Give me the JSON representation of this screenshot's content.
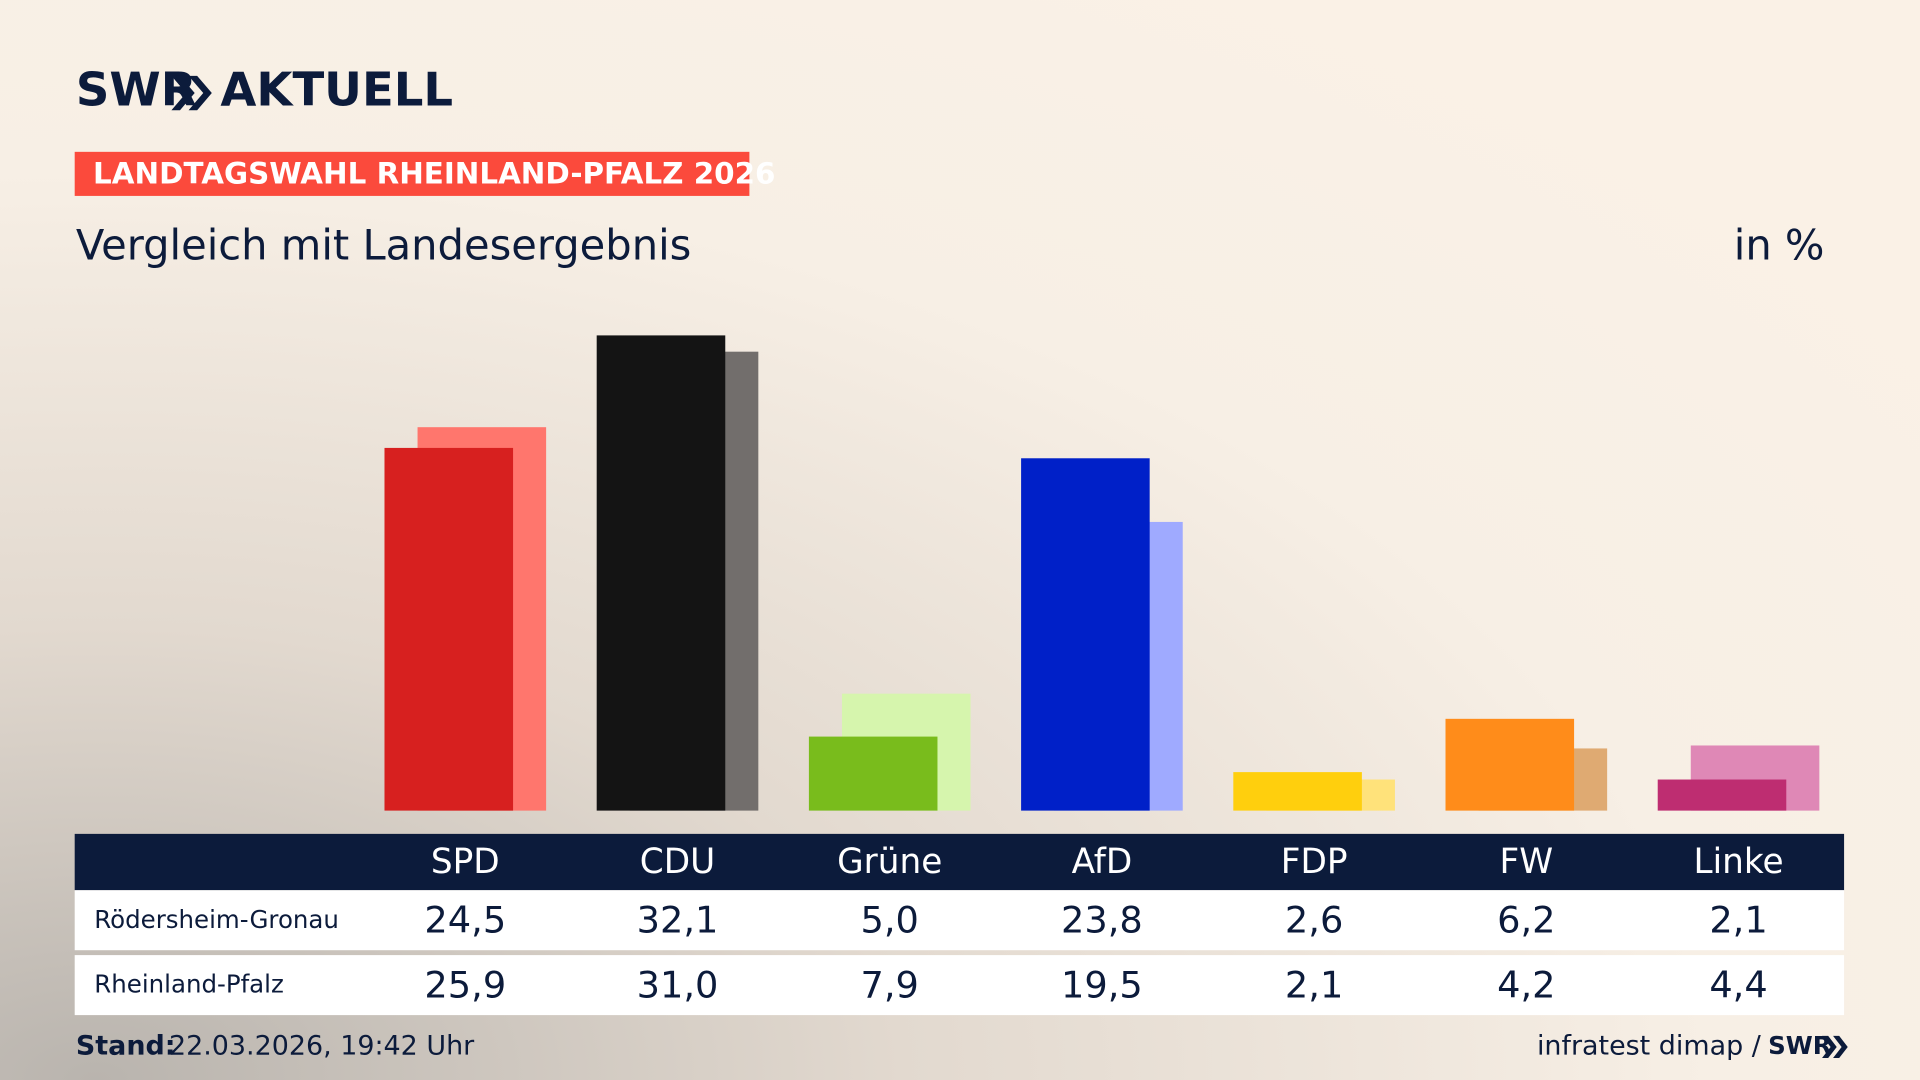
{
  "header": {
    "brand": "SWR",
    "brand_suffix": "AKTUELL",
    "tag": "LANDTAGSWAHL RHEINLAND-PFALZ 2026"
  },
  "chart_data": {
    "type": "bar",
    "title": "Vergleich mit Landesergebnis",
    "unit": "in %",
    "categories": [
      "SPD",
      "CDU",
      "Grüne",
      "AfD",
      "FDP",
      "FW",
      "Linke"
    ],
    "series": [
      {
        "name": "Rödersheim-Gronau",
        "colors": [
          "#d7201f",
          "#141414",
          "#79bc1c",
          "#0020c8",
          "#ffcf0d",
          "#ff8c1a",
          "#be2d71"
        ],
        "values": [
          24.5,
          32.1,
          5.0,
          23.8,
          2.6,
          6.2,
          2.1
        ],
        "value_labels": [
          "24,5",
          "32,1",
          "5,0",
          "23,8",
          "2,6",
          "6,2",
          "2,1"
        ]
      },
      {
        "name": "Rheinland-Pfalz",
        "colors": [
          "#ff766d",
          "#726e6c",
          "#d6f5ad",
          "#9faaff",
          "#ffe27a",
          "#dfaa72",
          "#df88b6"
        ],
        "values": [
          25.9,
          31.0,
          7.9,
          19.5,
          2.1,
          4.2,
          4.4
        ],
        "value_labels": [
          "25,9",
          "31,0",
          "7,9",
          "19,5",
          "2,1",
          "4,2",
          "4,4"
        ]
      }
    ]
  },
  "footer": {
    "stand_label": "Stand:",
    "stand": "22.03.2026, 19:42 Uhr",
    "source": "infratest dimap /",
    "source_brand": "SWR"
  }
}
